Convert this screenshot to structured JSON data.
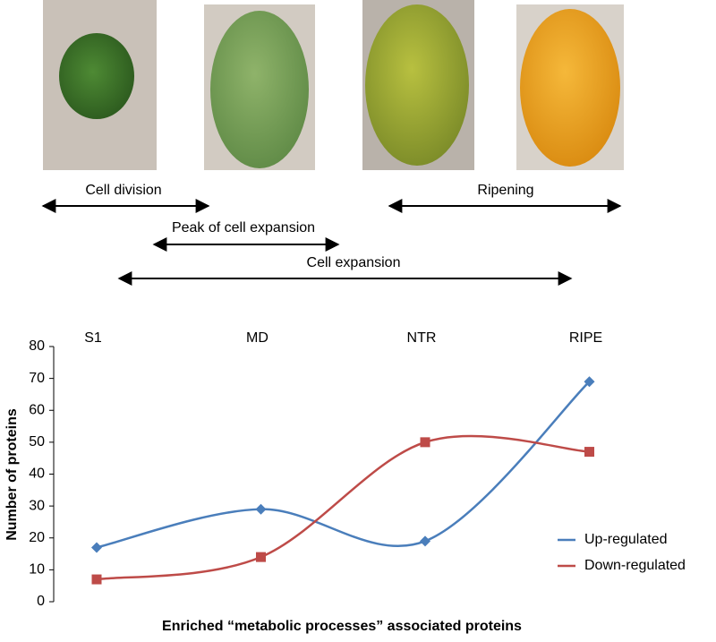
{
  "chart_data": {
    "type": "line",
    "annotations": [
      "Cell division",
      "Ripening",
      "Peak of cell expansion",
      "Cell expansion"
    ],
    "categories": [
      "S1",
      "MD",
      "NTR",
      "RIPE"
    ],
    "series": [
      {
        "name": "Up-regulated",
        "color": "#4a7ebb",
        "marker": "diamond",
        "values": [
          17,
          29,
          19,
          69
        ]
      },
      {
        "name": "Down-regulated",
        "color": "#be4b48",
        "marker": "square",
        "values": [
          7,
          14,
          50,
          47
        ]
      }
    ],
    "ylabel": "Number of proteins",
    "xlabel": "Enriched “metabolic processes” associated proteins",
    "ylim": [
      0,
      80
    ],
    "yticks": [
      0,
      10,
      20,
      30,
      40,
      50,
      60,
      70,
      80
    ],
    "smooth": true,
    "legend": "right"
  }
}
